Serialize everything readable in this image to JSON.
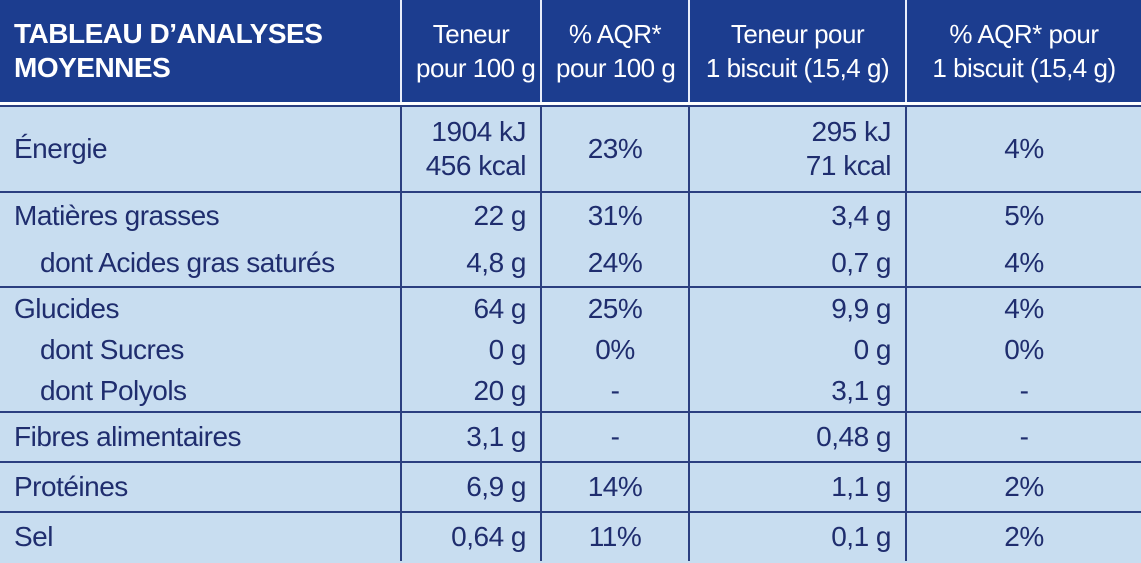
{
  "header": {
    "title": [
      "TABLEAU D’ANALYSES",
      "MOYENNES"
    ],
    "columns": [
      [
        "Teneur",
        "pour 100 g"
      ],
      [
        "% AQR*",
        "pour 100 g"
      ],
      [
        "Teneur pour",
        "1 biscuit (15,4 g)"
      ],
      [
        "% AQR* pour",
        "1 biscuit (15,4 g)"
      ]
    ]
  },
  "groups": [
    {
      "rows": [
        {
          "label": "Énergie",
          "cells": [
            [
              "1904 kJ",
              "456 kcal"
            ],
            "23%",
            [
              "295 kJ",
              "71 kcal"
            ],
            "4%"
          ]
        }
      ]
    },
    {
      "rows": [
        {
          "label": "Matières grasses",
          "cells": [
            "22 g",
            "31%",
            "3,4 g",
            "5%"
          ]
        },
        {
          "label": "dont Acides gras saturés",
          "cells": [
            "4,8 g",
            "24%",
            "0,7 g",
            "4%"
          ]
        }
      ]
    },
    {
      "rows": [
        {
          "label": "Glucides",
          "cells": [
            "64 g",
            "25%",
            "9,9 g",
            "4%"
          ]
        },
        {
          "label": "dont Sucres",
          "cells": [
            "0 g",
            "0%",
            "0 g",
            "0%"
          ]
        },
        {
          "label": "dont Polyols",
          "cells": [
            "20 g",
            "-",
            "3,1 g",
            "-"
          ]
        }
      ]
    },
    {
      "rows": [
        {
          "label": "Fibres alimentaires",
          "cells": [
            "3,1 g",
            "-",
            "0,48 g",
            "-"
          ]
        }
      ]
    },
    {
      "rows": [
        {
          "label": "Protéines",
          "cells": [
            "6,9 g",
            "14%",
            "1,1 g",
            "2%"
          ]
        }
      ]
    },
    {
      "rows": [
        {
          "label": "Sel",
          "cells": [
            "0,64 g",
            "11%",
            "0,1 g",
            "2%"
          ]
        }
      ]
    }
  ]
}
